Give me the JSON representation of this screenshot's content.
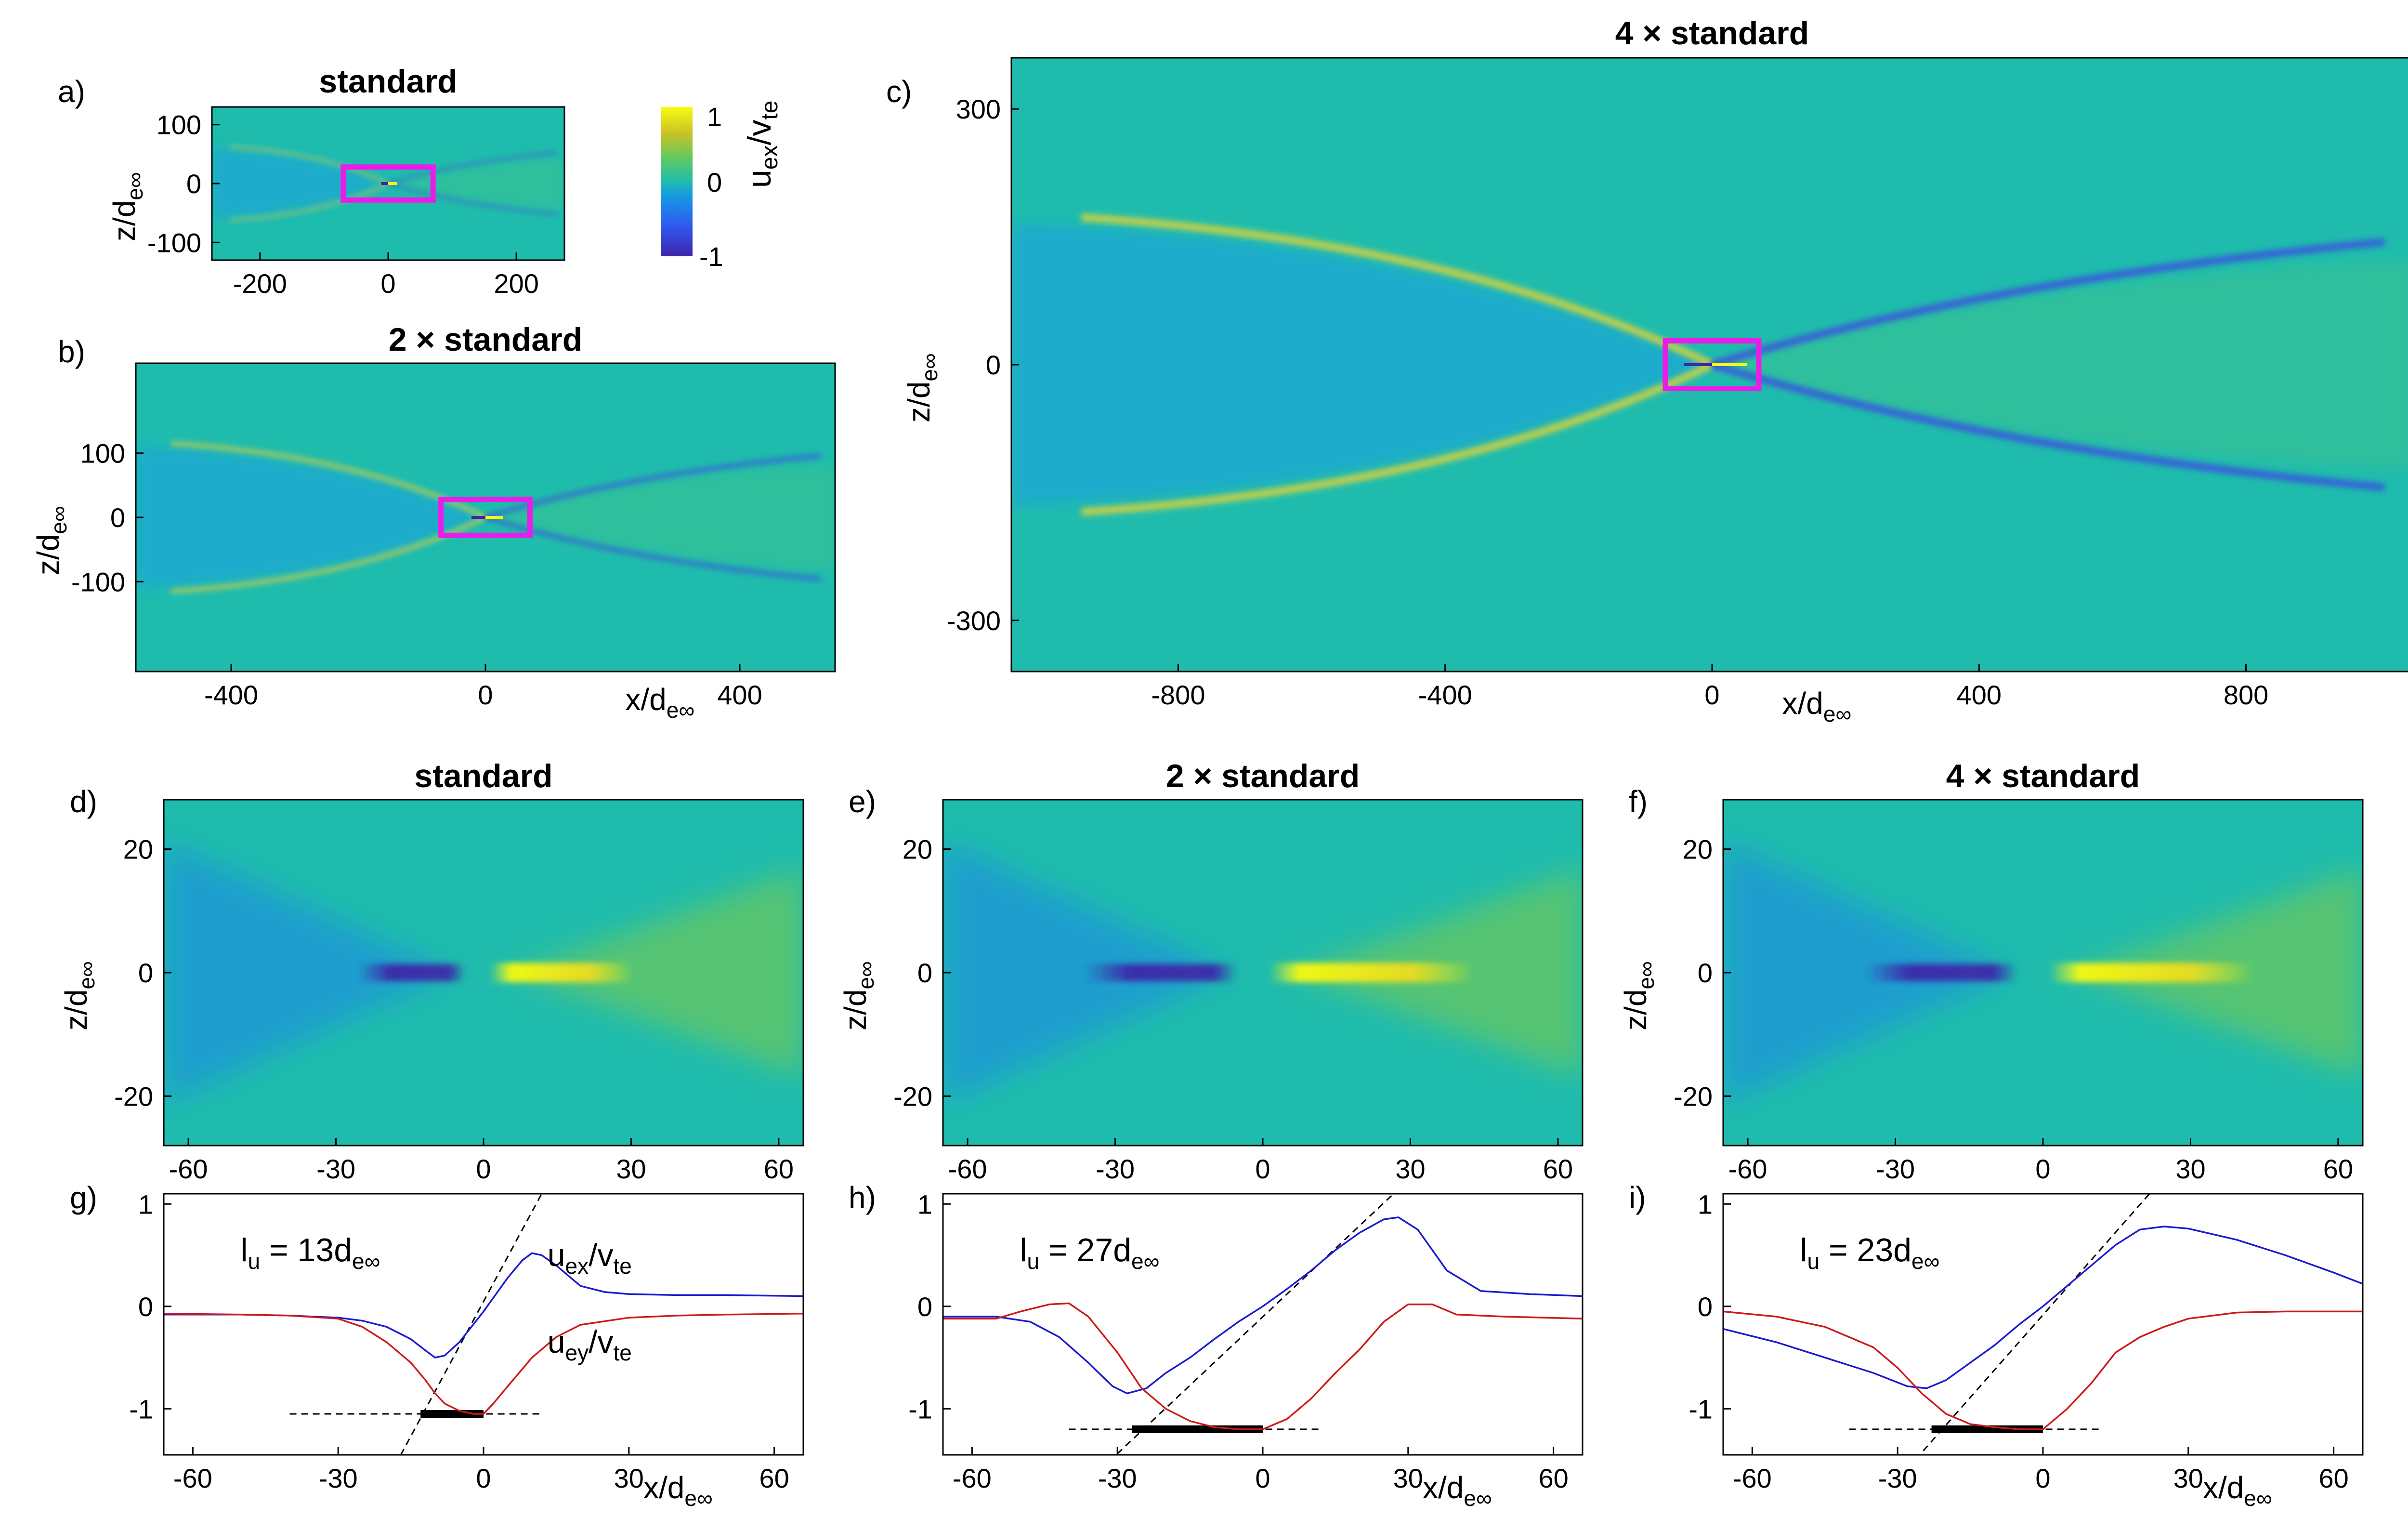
{
  "colors": {
    "background": "#1fbcad",
    "negative": "#3d26a8",
    "positive": "#f9fb0e",
    "blue_curve": "#1a1ad0",
    "red_curve": "#cc1a1a",
    "box": "#e81ee8"
  },
  "colorbar": {
    "label": "u",
    "label_sub": "ex",
    "label_sep": "/v",
    "label_sub2": "te",
    "ticks": [
      "1",
      "0",
      "-1"
    ]
  },
  "chart_data": [
    {
      "id": "a",
      "panel_label": "a)",
      "type": "heatmap",
      "title": "standard",
      "xlabel": "",
      "ylabel": "z/d",
      "ylabel_sub": "e∞",
      "xlim": [
        -275,
        275
      ],
      "ylim": [
        -130,
        130
      ],
      "xticks": [
        "-200",
        "0",
        "200"
      ],
      "yticks": [
        "100",
        "0",
        "-100"
      ],
      "xtick_values": [
        -200,
        0,
        200
      ],
      "ytick_values": [
        100,
        0,
        -100
      ],
      "zoom_box": {
        "x": [
          -70,
          70
        ],
        "z": [
          -28,
          28
        ]
      }
    },
    {
      "id": "b",
      "panel_label": "b)",
      "type": "heatmap",
      "title": "2 × standard",
      "xlabel": "x/d",
      "xlabel_sub": "e∞",
      "ylabel": "z/d",
      "ylabel_sub": "e∞",
      "xlim": [
        -550,
        550
      ],
      "ylim": [
        -240,
        240
      ],
      "xticks": [
        "-400",
        "0",
        "400"
      ],
      "yticks": [
        "100",
        "0",
        "-100"
      ],
      "xtick_values": [
        -400,
        0,
        400
      ],
      "ytick_values": [
        100,
        0,
        -100
      ],
      "zoom_box": {
        "x": [
          -70,
          70
        ],
        "z": [
          -28,
          28
        ]
      }
    },
    {
      "id": "c",
      "panel_label": "c)",
      "type": "heatmap",
      "title": "4 × standard",
      "xlabel": "x/d",
      "xlabel_sub": "e∞",
      "ylabel": "z/d",
      "ylabel_sub": "e∞",
      "xlim": [
        -1050,
        1050
      ],
      "ylim": [
        -360,
        360
      ],
      "xticks": [
        "-800",
        "-400",
        "0",
        "400",
        "800"
      ],
      "yticks": [
        "300",
        "0",
        "-300"
      ],
      "xtick_values": [
        -800,
        -400,
        0,
        400,
        800
      ],
      "ytick_values": [
        300,
        0,
        -300
      ],
      "zoom_box": {
        "x": [
          -70,
          70
        ],
        "z": [
          -28,
          28
        ]
      }
    },
    {
      "id": "d",
      "panel_label": "d)",
      "type": "heatmap",
      "title": "standard",
      "xlabel": "",
      "ylabel": "z/d",
      "ylabel_sub": "e∞",
      "xlim": [
        -65,
        65
      ],
      "ylim": [
        -28,
        28
      ],
      "xticks": [
        "-60",
        "-30",
        "0",
        "30",
        "60"
      ],
      "yticks": [
        "20",
        "0",
        "-20"
      ],
      "xtick_values": [
        -60,
        -30,
        0,
        30,
        60
      ],
      "ytick_values": [
        20,
        0,
        -20
      ],
      "jet_scale": 0.7
    },
    {
      "id": "e",
      "panel_label": "e)",
      "type": "heatmap",
      "title": "2 × standard",
      "xlabel": "",
      "ylabel": "z/d",
      "ylabel_sub": "e∞",
      "xlim": [
        -65,
        65
      ],
      "ylim": [
        -28,
        28
      ],
      "xticks": [
        "-60",
        "-30",
        "0",
        "30",
        "60"
      ],
      "yticks": [
        "20",
        "0",
        "-20"
      ],
      "xtick_values": [
        -60,
        -30,
        0,
        30,
        60
      ],
      "ytick_values": [
        20,
        0,
        -20
      ],
      "jet_scale": 1.0
    },
    {
      "id": "f",
      "panel_label": "f)",
      "type": "heatmap",
      "title": "4 × standard",
      "xlabel": "",
      "ylabel": "z/d",
      "ylabel_sub": "e∞",
      "xlim": [
        -65,
        65
      ],
      "ylim": [
        -28,
        28
      ],
      "xticks": [
        "-60",
        "-30",
        "0",
        "30",
        "60"
      ],
      "yticks": [
        "20",
        "0",
        "-20"
      ],
      "xtick_values": [
        -60,
        -30,
        0,
        30,
        60
      ],
      "ytick_values": [
        20,
        0,
        -20
      ],
      "jet_scale": 1.0
    },
    {
      "id": "g",
      "panel_label": "g)",
      "type": "line",
      "xlabel": "x/d",
      "xlabel_sub": "e∞",
      "xlim": [
        -66,
        66
      ],
      "ylim": [
        -1.45,
        1.1
      ],
      "xticks": [
        "-60",
        "-30",
        "0",
        "30",
        "60"
      ],
      "yticks": [
        "1",
        "0",
        "-1"
      ],
      "xtick_values": [
        -60,
        -30,
        0,
        30,
        60
      ],
      "ytick_values": [
        1,
        0,
        -1
      ],
      "annotation": "l",
      "annotation_sub": "u",
      "annotation_eq": " = 13d",
      "annotation_sub2": "e∞",
      "curve_labels": {
        "blue": {
          "main": "u",
          "sub": "ex",
          "sep": "/v",
          "sub2": "te"
        },
        "red": {
          "main": "u",
          "sub": "ey",
          "sep": "/v",
          "sub2": "te"
        }
      },
      "series": [
        {
          "name": "u_ex/v_te",
          "color": "blue",
          "x": [
            -66,
            -50,
            -40,
            -30,
            -25,
            -20,
            -15,
            -12,
            -10,
            -8,
            -5,
            0,
            5,
            8,
            10,
            12,
            15,
            20,
            25,
            30,
            40,
            50,
            66
          ],
          "y": [
            -0.08,
            -0.08,
            -0.09,
            -0.11,
            -0.14,
            -0.2,
            -0.32,
            -0.43,
            -0.5,
            -0.48,
            -0.35,
            -0.05,
            0.28,
            0.45,
            0.52,
            0.5,
            0.4,
            0.2,
            0.14,
            0.12,
            0.11,
            0.11,
            0.1
          ]
        },
        {
          "name": "u_ey/v_te",
          "color": "red",
          "x": [
            -66,
            -50,
            -40,
            -30,
            -25,
            -20,
            -15,
            -12,
            -10,
            -8,
            -5,
            -2,
            0,
            2,
            5,
            10,
            15,
            20,
            30,
            40,
            50,
            66
          ],
          "y": [
            -0.07,
            -0.08,
            -0.09,
            -0.12,
            -0.2,
            -0.35,
            -0.55,
            -0.72,
            -0.85,
            -0.95,
            -1.02,
            -1.05,
            -1.05,
            -0.95,
            -0.78,
            -0.5,
            -0.3,
            -0.18,
            -0.11,
            -0.09,
            -0.08,
            -0.07
          ]
        }
      ],
      "fit_line": {
        "x": [
          -20.5,
          12
        ],
        "y": [
          -1.75,
          1.1
        ]
      },
      "hline": {
        "x": [
          -40,
          12
        ],
        "y": -1.05
      },
      "bar": {
        "x": [
          -13,
          0
        ],
        "y": -1.05
      }
    },
    {
      "id": "h",
      "panel_label": "h)",
      "type": "line",
      "xlabel": "x/d",
      "xlabel_sub": "e∞",
      "xlim": [
        -66,
        66
      ],
      "ylim": [
        -1.45,
        1.1
      ],
      "xticks": [
        "-60",
        "-30",
        "0",
        "30",
        "60"
      ],
      "yticks": [
        "1",
        "0",
        "-1"
      ],
      "xtick_values": [
        -60,
        -30,
        0,
        30,
        60
      ],
      "ytick_values": [
        1,
        0,
        -1
      ],
      "annotation": "l",
      "annotation_sub": "u",
      "annotation_eq": " = 27d",
      "annotation_sub2": "e∞",
      "series": [
        {
          "name": "u_ex/v_te",
          "color": "blue",
          "x": [
            -66,
            -55,
            -48,
            -42,
            -36,
            -31,
            -28,
            -24,
            -20,
            -15,
            -10,
            -5,
            0,
            5,
            10,
            15,
            20,
            25,
            28,
            32,
            38,
            45,
            55,
            66
          ],
          "y": [
            -0.1,
            -0.1,
            -0.15,
            -0.3,
            -0.55,
            -0.78,
            -0.85,
            -0.8,
            -0.65,
            -0.5,
            -0.32,
            -0.15,
            0,
            0.17,
            0.35,
            0.55,
            0.72,
            0.85,
            0.87,
            0.75,
            0.35,
            0.15,
            0.12,
            0.1
          ]
        },
        {
          "name": "u_ey/v_te",
          "color": "red",
          "x": [
            -66,
            -55,
            -50,
            -44,
            -40,
            -36,
            -30,
            -25,
            -20,
            -15,
            -10,
            -5,
            0,
            5,
            10,
            15,
            20,
            25,
            30,
            35,
            40,
            50,
            66
          ],
          "y": [
            -0.12,
            -0.12,
            -0.05,
            0.02,
            0.03,
            -0.1,
            -0.45,
            -0.8,
            -1.0,
            -1.12,
            -1.18,
            -1.2,
            -1.2,
            -1.1,
            -0.9,
            -0.65,
            -0.42,
            -0.15,
            0.02,
            0.02,
            -0.08,
            -0.1,
            -0.12
          ]
        }
      ],
      "fit_line": {
        "x": [
          -37,
          27
        ],
        "y": [
          -1.75,
          1.1
        ]
      },
      "hline": {
        "x": [
          -40,
          12
        ],
        "y": -1.2
      },
      "bar": {
        "x": [
          -27,
          0
        ],
        "y": -1.2
      }
    },
    {
      "id": "i",
      "panel_label": "i)",
      "type": "line",
      "xlabel": "x/d",
      "xlabel_sub": "e∞",
      "xlim": [
        -66,
        66
      ],
      "ylim": [
        -1.45,
        1.1
      ],
      "xticks": [
        "-60",
        "-30",
        "0",
        "30",
        "60"
      ],
      "yticks": [
        "1",
        "0",
        "-1"
      ],
      "xtick_values": [
        -60,
        -30,
        0,
        30,
        60
      ],
      "ytick_values": [
        1,
        0,
        -1
      ],
      "annotation": "l",
      "annotation_sub": "u",
      "annotation_eq": " = 23d",
      "annotation_sub2": "e∞",
      "series": [
        {
          "name": "u_ex/v_te",
          "color": "blue",
          "x": [
            -66,
            -55,
            -45,
            -35,
            -28,
            -24,
            -20,
            -15,
            -10,
            -5,
            0,
            5,
            10,
            15,
            20,
            25,
            30,
            40,
            50,
            60,
            66
          ],
          "y": [
            -0.22,
            -0.35,
            -0.5,
            -0.65,
            -0.78,
            -0.8,
            -0.72,
            -0.55,
            -0.38,
            -0.18,
            0,
            0.2,
            0.4,
            0.6,
            0.75,
            0.78,
            0.76,
            0.65,
            0.5,
            0.33,
            0.22
          ]
        },
        {
          "name": "u_ey/v_te",
          "color": "red",
          "x": [
            -66,
            -55,
            -45,
            -35,
            -30,
            -25,
            -20,
            -15,
            -10,
            -5,
            0,
            5,
            10,
            15,
            20,
            25,
            30,
            40,
            50,
            66
          ],
          "y": [
            -0.05,
            -0.1,
            -0.2,
            -0.4,
            -0.6,
            -0.85,
            -1.05,
            -1.15,
            -1.18,
            -1.2,
            -1.2,
            -1.0,
            -0.75,
            -0.45,
            -0.3,
            -0.2,
            -0.12,
            -0.06,
            -0.05,
            -0.05
          ]
        }
      ],
      "fit_line": {
        "x": [
          -31,
          22
        ],
        "y": [
          -1.75,
          1.1
        ]
      },
      "hline": {
        "x": [
          -40,
          12
        ],
        "y": -1.2
      },
      "bar": {
        "x": [
          -23,
          0
        ],
        "y": -1.2
      }
    }
  ]
}
